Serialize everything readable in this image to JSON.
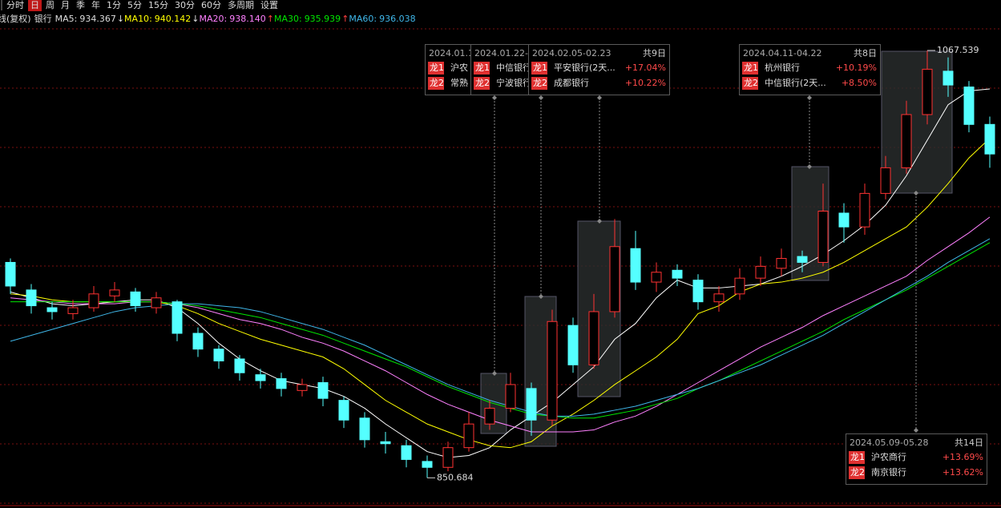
{
  "toolbar": {
    "tabs": [
      "分时",
      "日",
      "周",
      "月",
      "季",
      "年",
      "1分",
      "5分",
      "15分",
      "30分",
      "60分",
      "多周期",
      "设置"
    ],
    "active": 1
  },
  "chart_data": {
    "type": "candlestick",
    "title": "日线(复权)",
    "subtitle": "银行",
    "up_color": "#ff3232",
    "down_color": "#54ffff",
    "ylim": [
      837,
      1085
    ],
    "grid": true,
    "open": [
      960,
      946,
      937,
      934,
      937,
      943,
      945,
      937,
      940,
      924,
      916,
      911,
      903,
      901,
      895,
      899,
      890,
      881,
      869,
      867,
      859,
      856,
      866,
      878,
      886,
      896,
      880,
      928,
      908,
      935,
      967,
      950,
      956,
      951,
      940,
      944,
      952,
      957,
      963,
      960,
      985,
      978,
      995,
      1008,
      1035,
      1057,
      1049,
      1030
    ],
    "high": [
      962,
      949,
      940,
      941,
      948,
      950,
      947,
      945,
      941,
      927,
      918,
      913,
      906,
      904,
      901,
      902,
      892,
      884,
      874,
      870,
      862,
      869,
      884,
      890,
      904,
      899,
      936,
      932,
      944,
      982,
      976,
      960,
      959,
      954,
      948,
      957,
      963,
      967,
      966,
      1000,
      990,
      1000,
      1014,
      1042,
      1067.539,
      1064,
      1052,
      1034
    ],
    "low": [
      944,
      934,
      931,
      931,
      935,
      940,
      935,
      934,
      920,
      912,
      906,
      900,
      896,
      892,
      892,
      887,
      876,
      866,
      863,
      856,
      850.684,
      854,
      864,
      875,
      884,
      872,
      877,
      904,
      906,
      932,
      946,
      945,
      948,
      936,
      935,
      941,
      948,
      953,
      955,
      958,
      970,
      974,
      992,
      1005,
      1030,
      1044,
      1026,
      1008
    ],
    "close": [
      948,
      938,
      935,
      937,
      944,
      946,
      938,
      942,
      924,
      916,
      910,
      904,
      900,
      896,
      898,
      891,
      880,
      870,
      868,
      860,
      856,
      866,
      878,
      886,
      898,
      880,
      930,
      908,
      935,
      968,
      950,
      955,
      952,
      940,
      944,
      952,
      958,
      962,
      960,
      986,
      978,
      995,
      1008,
      1035,
      1058,
      1050,
      1030,
      1015
    ],
    "series": [
      {
        "name": "MA5",
        "value": 934.367,
        "color": "#ffffff",
        "values": [
          945,
          942,
          939,
          938,
          939,
          940,
          941,
          941,
          937,
          929,
          919,
          911,
          905,
          900,
          898,
          896,
          892,
          886,
          878,
          871,
          864,
          861,
          862,
          866,
          875,
          882,
          889,
          898,
          907,
          921,
          929,
          942,
          951,
          947,
          947,
          948,
          949,
          953,
          958,
          964,
          971,
          979,
          989,
          1004,
          1022,
          1040,
          1047,
          1048
        ]
      },
      {
        "name": "MA10",
        "arrow": "↓",
        "value": 940.142,
        "color": "#ffff00",
        "values": [
          944,
          943,
          941,
          940,
          940,
          940,
          940,
          940,
          938,
          934,
          929,
          925,
          921,
          918,
          915,
          912,
          906,
          898,
          890,
          884,
          878,
          874,
          870,
          867,
          866,
          869,
          877,
          883,
          890,
          898,
          905,
          912,
          921,
          934,
          938,
          945,
          949,
          950,
          952,
          955,
          960,
          966,
          972,
          978,
          988,
          1000,
          1013,
          1023
        ]
      },
      {
        "name": "MA20",
        "arrow": "↓",
        "value": 938.14,
        "value_label": "938.140",
        "color": "#ff80ff",
        "values": [
          942,
          941,
          940,
          939,
          939,
          939,
          940,
          940,
          939,
          937,
          934,
          931,
          929,
          926,
          922,
          919,
          915,
          910,
          905,
          899,
          893,
          888,
          884,
          880,
          877,
          874,
          874,
          874,
          875,
          879,
          882,
          887,
          893,
          899,
          905,
          911,
          917,
          922,
          927,
          933,
          938,
          943,
          948,
          953,
          961,
          968,
          975,
          983
        ]
      },
      {
        "name": "MA30",
        "arrow": "↑",
        "value": 935.939,
        "color": "#00e600",
        "values": [
          940,
          940,
          940,
          940,
          940,
          940,
          940,
          940,
          939,
          938,
          936,
          934,
          932,
          929,
          926,
          923,
          919,
          915,
          911,
          907,
          902,
          897,
          893,
          889,
          886,
          883,
          882,
          881,
          881,
          883,
          885,
          888,
          891,
          896,
          900,
          905,
          910,
          915,
          920,
          925,
          931,
          936,
          941,
          946,
          952,
          958,
          964,
          970
        ]
      },
      {
        "name": "MA60",
        "arrow": "↑",
        "value": 936.038,
        "color": "#3fb6e8",
        "values": [
          920,
          923,
          926,
          929,
          932,
          935,
          937,
          938,
          939,
          939,
          938,
          937,
          935,
          932,
          929,
          926,
          922,
          918,
          913,
          908,
          903,
          898,
          894,
          890,
          887,
          884,
          882,
          882,
          883,
          885,
          887,
          890,
          893,
          896,
          900,
          904,
          908,
          913,
          918,
          923,
          929,
          935,
          941,
          947,
          953,
          960,
          966,
          972
        ]
      }
    ]
  },
  "popups": [
    {
      "header": "2024.01.1",
      "rows": [
        {
          "rank": "龙1",
          "name": "沪农"
        },
        {
          "rank": "龙2",
          "name": "常熟"
        }
      ]
    },
    {
      "header": "2024.01.22-0",
      "rows": [
        {
          "rank": "龙1",
          "name": "中信银行"
        },
        {
          "rank": "龙2",
          "name": "宁波银行"
        }
      ]
    },
    {
      "header": "2024.02.05-02.23",
      "days": "共9日",
      "rows": [
        {
          "rank": "龙1",
          "name": "平安银行(2天...",
          "pct": "+17.04%"
        },
        {
          "rank": "龙2",
          "name": "成都银行",
          "pct": "+10.22%"
        }
      ]
    },
    {
      "header": "2024.04.11-04.22",
      "days": "共8日",
      "rows": [
        {
          "rank": "龙1",
          "name": "杭州银行",
          "pct": "+10.19%"
        },
        {
          "rank": "龙2",
          "name": "中信银行(2天...",
          "pct": "+8.50%"
        }
      ]
    },
    {
      "header": "2024.05.09-05.28",
      "days": "共14日",
      "rows": [
        {
          "rank": "龙1",
          "name": "沪农商行",
          "pct": "+13.69%"
        },
        {
          "rank": "龙2",
          "name": "南京银行",
          "pct": "+13.62%"
        }
      ]
    }
  ]
}
